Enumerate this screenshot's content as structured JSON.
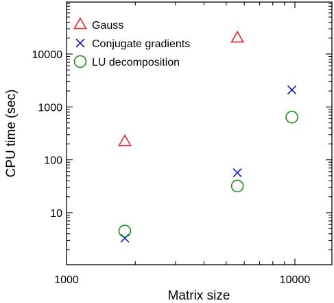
{
  "chart_data": {
    "type": "scatter",
    "xlabel": "Matrix size",
    "ylabel": "CPU time (sec)",
    "x_scale": "log",
    "y_scale": "log",
    "xlim": [
      1000,
      15000
    ],
    "ylim": [
      1.5,
      90000
    ],
    "x_ticks": [
      1000,
      10000
    ],
    "x_tick_labels": [
      "1000",
      "10000"
    ],
    "y_ticks": [
      10,
      100,
      1000,
      10000
    ],
    "y_tick_labels": [
      "10",
      "100",
      "1000",
      "10000"
    ],
    "grid": false,
    "legend_position": "top-left",
    "series": [
      {
        "name": "Gauss",
        "marker": "triangle",
        "color": "#e8202a",
        "points": [
          {
            "x": 1800,
            "y": 220
          },
          {
            "x": 5600,
            "y": 20000
          }
        ]
      },
      {
        "name": "Conjugate gradients",
        "marker": "x",
        "color": "#1515c8",
        "points": [
          {
            "x": 1800,
            "y": 3.3
          },
          {
            "x": 5600,
            "y": 57
          },
          {
            "x": 9700,
            "y": 2100
          }
        ]
      },
      {
        "name": "LU decomposition",
        "marker": "circle",
        "color": "#1f8a1f",
        "points": [
          {
            "x": 1800,
            "y": 4.5
          },
          {
            "x": 5600,
            "y": 32
          },
          {
            "x": 9700,
            "y": 640
          }
        ]
      }
    ]
  }
}
